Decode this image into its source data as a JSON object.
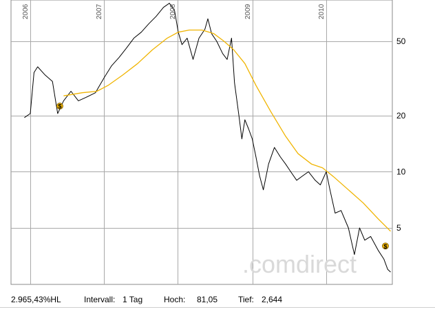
{
  "chart_data": {
    "type": "line",
    "x_labels": [
      "2006",
      "2007",
      "2008",
      "2009",
      "2010"
    ],
    "y_ticks": [
      50,
      20,
      10,
      5
    ],
    "yscale": "log",
    "ylim": [
      2.5,
      100
    ],
    "grid": true,
    "series": [
      {
        "color": "#000000",
        "points": [
          [
            2005.92,
            19.5
          ],
          [
            2006.0,
            20.5
          ],
          [
            2006.05,
            34.0
          ],
          [
            2006.1,
            36.5
          ],
          [
            2006.2,
            33.0
          ],
          [
            2006.3,
            30.5
          ],
          [
            2006.37,
            20.5
          ],
          [
            2006.45,
            24.0
          ],
          [
            2006.55,
            27.0
          ],
          [
            2006.65,
            24.0
          ],
          [
            2006.75,
            25.0
          ],
          [
            2006.88,
            26.5
          ],
          [
            2007.0,
            32.0
          ],
          [
            2007.1,
            37.0
          ],
          [
            2007.2,
            41.0
          ],
          [
            2007.3,
            46.0
          ],
          [
            2007.4,
            52.0
          ],
          [
            2007.5,
            56.0
          ],
          [
            2007.6,
            62.0
          ],
          [
            2007.7,
            68.0
          ],
          [
            2007.8,
            76.0
          ],
          [
            2007.88,
            80.0
          ],
          [
            2007.95,
            73.0
          ],
          [
            2008.0,
            56.0
          ],
          [
            2008.05,
            48.0
          ],
          [
            2008.12,
            52.0
          ],
          [
            2008.2,
            40.0
          ],
          [
            2008.28,
            52.0
          ],
          [
            2008.36,
            58.0
          ],
          [
            2008.4,
            66.0
          ],
          [
            2008.45,
            55.0
          ],
          [
            2008.52,
            50.0
          ],
          [
            2008.6,
            43.0
          ],
          [
            2008.66,
            40.0
          ],
          [
            2008.72,
            52.0
          ],
          [
            2008.76,
            30.0
          ],
          [
            2008.82,
            20.0
          ],
          [
            2008.86,
            15.0
          ],
          [
            2008.9,
            19.0
          ],
          [
            2008.95,
            17.0
          ],
          [
            2009.0,
            15.0
          ],
          [
            2009.05,
            12.0
          ],
          [
            2009.1,
            9.5
          ],
          [
            2009.15,
            8.0
          ],
          [
            2009.22,
            11.0
          ],
          [
            2009.3,
            13.5
          ],
          [
            2009.38,
            12.0
          ],
          [
            2009.45,
            11.0
          ],
          [
            2009.52,
            10.0
          ],
          [
            2009.6,
            9.0
          ],
          [
            2009.68,
            9.5
          ],
          [
            2009.76,
            10.0
          ],
          [
            2009.85,
            9.0
          ],
          [
            2009.92,
            8.5
          ],
          [
            2010.0,
            10.0
          ],
          [
            2010.05,
            8.0
          ],
          [
            2010.12,
            6.0
          ],
          [
            2010.2,
            6.2
          ],
          [
            2010.3,
            5.0
          ],
          [
            2010.38,
            3.6
          ],
          [
            2010.45,
            5.0
          ],
          [
            2010.52,
            4.3
          ],
          [
            2010.6,
            4.5
          ],
          [
            2010.7,
            3.8
          ],
          [
            2010.78,
            3.4
          ],
          [
            2010.83,
            3.0
          ],
          [
            2010.87,
            2.9
          ]
        ]
      },
      {
        "color": "#f0b400",
        "points": [
          [
            2006.45,
            25.5
          ],
          [
            2006.7,
            26.5
          ],
          [
            2006.9,
            27.0
          ],
          [
            2007.05,
            29.0
          ],
          [
            2007.25,
            33.0
          ],
          [
            2007.45,
            38.0
          ],
          [
            2007.65,
            45.0
          ],
          [
            2007.85,
            52.0
          ],
          [
            2008.0,
            56.0
          ],
          [
            2008.15,
            57.5
          ],
          [
            2008.32,
            57.5
          ],
          [
            2008.48,
            55.0
          ],
          [
            2008.62,
            50.0
          ],
          [
            2008.75,
            45.0
          ],
          [
            2008.9,
            38.0
          ],
          [
            2009.05,
            29.0
          ],
          [
            2009.25,
            21.0
          ],
          [
            2009.45,
            15.5
          ],
          [
            2009.62,
            12.5
          ],
          [
            2009.8,
            11.0
          ],
          [
            2009.95,
            10.5
          ],
          [
            2010.1,
            9.4
          ],
          [
            2010.3,
            8.0
          ],
          [
            2010.5,
            6.8
          ],
          [
            2010.7,
            5.6
          ],
          [
            2010.87,
            4.8
          ]
        ]
      }
    ],
    "markers": [
      {
        "x": 2006.4,
        "y": 22.5,
        "label": "$"
      },
      {
        "x": 2010.8,
        "y": 4.0,
        "label": "$"
      }
    ],
    "watermark": ".comdirect"
  },
  "footer": {
    "range": "2.965,43%HL",
    "interval_label": "Intervall:",
    "interval_value": "1 Tag",
    "high_label": "Hoch:",
    "high_value": "81,05",
    "low_label": "Tief:",
    "low_value": "2,644"
  }
}
